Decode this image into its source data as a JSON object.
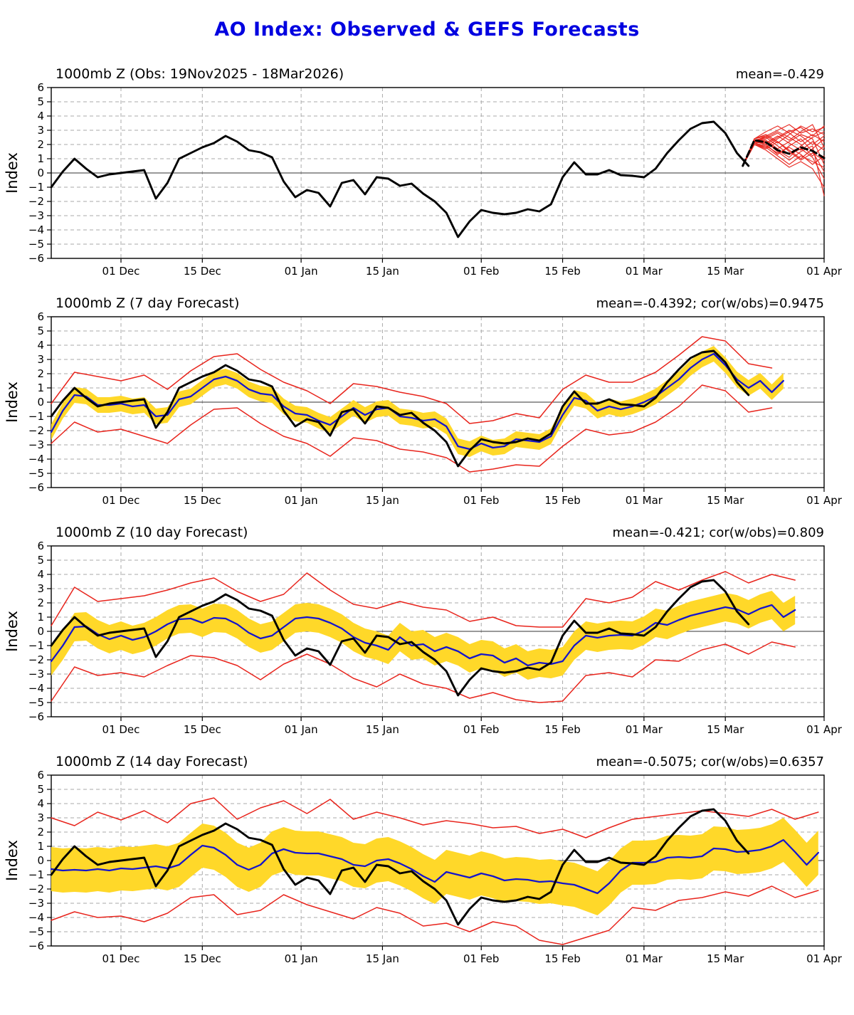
{
  "page_title": "AO Index: Observed & GEFS Forecasts",
  "colors": {
    "title": "#0000e0",
    "observed": "#000000",
    "forecast_mean": "#1414cc",
    "spread_band": "#ffd829",
    "envelope": "#e8241c",
    "grid": "#aaaaaa",
    "zero_line": "#333333",
    "spine": "#000000"
  },
  "chart_data": {
    "type": "line",
    "title": "AO Index: Observed & GEFS Forecasts",
    "ylabel": "Index",
    "ylim": [
      -6,
      6
    ],
    "x_range_days": [
      0,
      133
    ],
    "x_start_date": "19Nov2025",
    "x_ticks": [
      {
        "day": 12,
        "label": "01 Dec"
      },
      {
        "day": 26,
        "label": "15 Dec"
      },
      {
        "day": 43,
        "label": "01 Jan"
      },
      {
        "day": 57,
        "label": "15 Jan"
      },
      {
        "day": 74,
        "label": "01 Feb"
      },
      {
        "day": 88,
        "label": "15 Feb"
      },
      {
        "day": 102,
        "label": "01 Mar"
      },
      {
        "day": 116,
        "label": "15 Mar"
      },
      {
        "day": 133,
        "label": "01 Apr"
      }
    ],
    "observed": {
      "day_start": 0,
      "day_step": 2,
      "values": [
        -1.0,
        0.1,
        1.0,
        0.3,
        -0.3,
        -0.1,
        0.0,
        0.1,
        0.2,
        -1.8,
        -0.7,
        1.0,
        1.4,
        1.8,
        2.1,
        2.6,
        2.2,
        1.6,
        1.45,
        1.1,
        -0.6,
        -1.7,
        -1.2,
        -1.4,
        -2.35,
        -0.7,
        -0.5,
        -1.5,
        -0.3,
        -0.4,
        -0.9,
        -0.75,
        -1.45,
        -2.0,
        -2.8,
        -4.5,
        -3.4,
        -2.6,
        -2.8,
        -2.9,
        -2.8,
        -2.55,
        -2.7,
        -2.2,
        -0.3,
        0.75,
        -0.1,
        -0.1,
        0.2,
        -0.15,
        -0.2,
        -0.3,
        0.3,
        1.4,
        2.3,
        3.1,
        3.5,
        3.6,
        2.8,
        1.4,
        0.5
      ]
    },
    "panels": [
      {
        "kind": "obs_spaghetti",
        "title": "1000mb Z (Obs: 19Nov2025 - 18Mar2026)",
        "stats": "mean=-0.429",
        "forecast_mean": {
          "day_start": 119,
          "day_step": 2,
          "values": [
            0.5,
            2.3,
            2.15,
            1.6,
            1.35,
            1.8,
            1.55,
            1.05
          ]
        },
        "members": {
          "day_start": 119,
          "day_step": 2,
          "values": [
            [
              0.5,
              2.2,
              2.6,
              2.1,
              2.7,
              3.3,
              2.9,
              3.2
            ],
            [
              0.5,
              2.3,
              2.2,
              1.6,
              1.1,
              1.9,
              2.5,
              2.9
            ],
            [
              0.5,
              2.1,
              1.8,
              1.2,
              0.6,
              1.2,
              0.8,
              0.4
            ],
            [
              0.5,
              2.4,
              2.7,
              2.2,
              1.5,
              0.9,
              1.4,
              0.9
            ],
            [
              0.5,
              2.2,
              2.0,
              2.5,
              3.0,
              2.6,
              2.0,
              2.6
            ],
            [
              0.5,
              2.3,
              2.5,
              1.9,
              1.3,
              1.7,
              1.1,
              -0.4
            ],
            [
              0.5,
              2.0,
              1.6,
              1.0,
              0.4,
              0.8,
              0.3,
              -1.0
            ],
            [
              0.5,
              2.4,
              2.9,
              3.3,
              2.8,
              2.2,
              2.7,
              2.2
            ],
            [
              0.5,
              2.2,
              2.4,
              2.8,
              2.3,
              2.9,
              3.4,
              1.8
            ],
            [
              0.5,
              2.1,
              1.9,
              1.4,
              1.8,
              1.3,
              0.6,
              1.2
            ],
            [
              0.5,
              2.3,
              2.1,
              2.6,
              2.1,
              1.6,
              2.2,
              1.6
            ],
            [
              0.5,
              2.2,
              2.3,
              1.7,
              2.2,
              2.7,
              2.4,
              0.6
            ],
            [
              0.5,
              2.0,
              1.7,
              2.2,
              1.6,
              1.0,
              1.7,
              2.4
            ],
            [
              0.5,
              2.4,
              2.6,
              3.0,
              3.4,
              2.8,
              3.1,
              2.7
            ],
            [
              0.5,
              2.1,
              2.2,
              1.5,
              0.9,
              1.5,
              1.9,
              -1.6
            ],
            [
              0.5,
              2.3,
              2.0,
              1.3,
              1.9,
              2.4,
              1.5,
              0.1
            ],
            [
              0.5,
              2.2,
              2.5,
              2.9,
              2.5,
              2.0,
              1.2,
              1.9
            ],
            [
              0.5,
              2.0,
              1.8,
              2.4,
              2.9,
              3.2,
              2.6,
              3.3
            ]
          ]
        }
      },
      {
        "kind": "forecast",
        "title": "1000mb Z (7 day Forecast)",
        "stats": "mean=-0.4392; cor(w/obs)=0.9475",
        "band_halfwidth": 0.55,
        "mean": {
          "day_start": 0,
          "day_step": 2,
          "values": [
            -2.1,
            -0.6,
            0.5,
            0.4,
            -0.2,
            -0.2,
            -0.1,
            -0.3,
            -0.2,
            -1.0,
            -0.9,
            0.2,
            0.4,
            1.0,
            1.6,
            1.8,
            1.5,
            0.9,
            0.6,
            0.5,
            -0.3,
            -0.8,
            -0.9,
            -1.3,
            -1.6,
            -1.0,
            -0.4,
            -0.9,
            -0.5,
            -0.4,
            -1.0,
            -1.1,
            -1.3,
            -1.2,
            -1.7,
            -3.1,
            -3.3,
            -2.9,
            -3.2,
            -3.1,
            -2.6,
            -2.7,
            -2.8,
            -2.4,
            -0.9,
            0.3,
            0.1,
            -0.6,
            -0.3,
            -0.5,
            -0.3,
            0.0,
            0.4,
            1.0,
            1.6,
            2.4,
            3.0,
            3.4,
            2.6,
            1.6,
            1.0,
            1.5,
            0.7,
            1.5
          ]
        },
        "envelope_upper": {
          "day_start": 0,
          "day_step": 4,
          "values": [
            -0.1,
            2.1,
            1.8,
            1.5,
            1.9,
            0.9,
            2.2,
            3.2,
            3.4,
            2.3,
            1.4,
            0.8,
            -0.1,
            1.3,
            1.1,
            0.7,
            0.4,
            -0.1,
            -1.5,
            -1.3,
            -0.8,
            -1.1,
            0.9,
            1.9,
            1.4,
            1.4,
            2.1,
            3.3,
            4.6,
            4.3,
            2.7,
            2.4
          ]
        },
        "envelope_lower": {
          "day_start": 0,
          "day_step": 4,
          "values": [
            -2.9,
            -1.4,
            -2.1,
            -1.9,
            -2.4,
            -2.9,
            -1.6,
            -0.5,
            -0.4,
            -1.5,
            -2.4,
            -2.9,
            -3.8,
            -2.5,
            -2.7,
            -3.3,
            -3.5,
            -3.9,
            -4.9,
            -4.7,
            -4.4,
            -4.5,
            -3.1,
            -1.9,
            -2.3,
            -2.1,
            -1.4,
            -0.3,
            1.2,
            0.8,
            -0.7,
            -0.4
          ]
        }
      },
      {
        "kind": "forecast",
        "title": "1000mb Z (10 day Forecast)",
        "stats": "mean=-0.421; cor(w/obs)=0.809",
        "band_halfwidth": 1.0,
        "mean": {
          "day_start": 0,
          "day_step": 2,
          "values": [
            -2.1,
            -1.0,
            0.3,
            0.35,
            -0.2,
            -0.55,
            -0.3,
            -0.6,
            -0.4,
            0.0,
            0.5,
            0.85,
            0.9,
            0.6,
            0.95,
            0.9,
            0.5,
            -0.1,
            -0.5,
            -0.3,
            0.3,
            0.9,
            1.0,
            0.9,
            0.6,
            0.2,
            -0.4,
            -0.8,
            -1.0,
            -1.3,
            -0.4,
            -1.0,
            -0.9,
            -1.4,
            -1.1,
            -1.4,
            -1.9,
            -1.6,
            -1.7,
            -2.2,
            -1.9,
            -2.4,
            -2.2,
            -2.3,
            -2.1,
            -1.0,
            -0.3,
            -0.45,
            -0.3,
            -0.25,
            -0.3,
            0.05,
            0.6,
            0.45,
            0.8,
            1.1,
            1.3,
            1.5,
            1.7,
            1.55,
            1.2,
            1.6,
            1.85,
            1.0,
            1.5
          ]
        },
        "envelope_upper": {
          "day_start": 0,
          "day_step": 4,
          "values": [
            0.4,
            3.1,
            2.1,
            2.3,
            2.5,
            2.9,
            3.4,
            3.75,
            2.8,
            2.1,
            2.6,
            4.1,
            2.9,
            1.9,
            1.6,
            2.1,
            1.7,
            1.5,
            0.7,
            1.0,
            0.4,
            0.3,
            0.3,
            2.3,
            2.0,
            2.4,
            3.5,
            2.9,
            3.6,
            4.2,
            3.4,
            4.0,
            3.6
          ]
        },
        "envelope_lower": {
          "day_start": 0,
          "day_step": 4,
          "values": [
            -4.9,
            -2.5,
            -3.1,
            -2.9,
            -3.2,
            -2.4,
            -1.7,
            -1.85,
            -2.4,
            -3.4,
            -2.3,
            -1.6,
            -2.3,
            -3.3,
            -3.9,
            -3.0,
            -3.7,
            -4.0,
            -4.7,
            -4.3,
            -4.8,
            -5.0,
            -4.9,
            -3.1,
            -2.9,
            -3.2,
            -2.0,
            -2.1,
            -1.3,
            -0.9,
            -1.6,
            -0.75,
            -1.1
          ]
        }
      },
      {
        "kind": "forecast",
        "title": "1000mb Z (14 day Forecast)",
        "stats": "mean=-0.5075; cor(w/obs)=0.6357",
        "band_halfwidth": 1.55,
        "mean": {
          "day_start": 0,
          "day_step": 2,
          "values": [
            -0.6,
            -0.7,
            -0.65,
            -0.7,
            -0.6,
            -0.7,
            -0.55,
            -0.6,
            -0.5,
            -0.4,
            -0.55,
            -0.3,
            0.4,
            1.05,
            0.9,
            0.4,
            -0.3,
            -0.65,
            -0.3,
            0.5,
            0.8,
            0.55,
            0.5,
            0.5,
            0.3,
            0.1,
            -0.3,
            -0.4,
            0.0,
            0.1,
            -0.2,
            -0.6,
            -1.1,
            -1.5,
            -0.8,
            -1.0,
            -1.2,
            -0.9,
            -1.1,
            -1.4,
            -1.3,
            -1.35,
            -1.5,
            -1.45,
            -1.6,
            -1.7,
            -2.0,
            -2.3,
            -1.6,
            -0.7,
            -0.15,
            -0.15,
            -0.1,
            0.2,
            0.25,
            0.2,
            0.3,
            0.85,
            0.8,
            0.6,
            0.65,
            0.75,
            1.0,
            1.45,
            0.6,
            -0.3,
            0.55
          ]
        },
        "envelope_upper": {
          "day_start": 0,
          "day_step": 4,
          "values": [
            3.0,
            2.45,
            3.4,
            2.85,
            3.5,
            2.65,
            4.0,
            4.4,
            2.9,
            3.7,
            4.2,
            3.3,
            4.3,
            2.9,
            3.4,
            3.0,
            2.5,
            2.8,
            2.6,
            2.3,
            2.4,
            1.9,
            2.2,
            1.6,
            2.3,
            2.9,
            3.1,
            3.3,
            3.5,
            3.3,
            3.1,
            3.6,
            2.9,
            3.4
          ]
        },
        "envelope_lower": {
          "day_start": 0,
          "day_step": 4,
          "values": [
            -4.2,
            -3.6,
            -4.0,
            -3.9,
            -4.3,
            -3.7,
            -2.6,
            -2.4,
            -3.8,
            -3.5,
            -2.4,
            -3.1,
            -3.6,
            -4.1,
            -3.3,
            -3.7,
            -4.6,
            -4.4,
            -5.0,
            -4.3,
            -4.6,
            -5.6,
            -5.9,
            -5.4,
            -4.9,
            -3.3,
            -3.5,
            -2.8,
            -2.6,
            -2.2,
            -2.5,
            -1.8,
            -2.6,
            -2.1
          ]
        }
      }
    ]
  }
}
